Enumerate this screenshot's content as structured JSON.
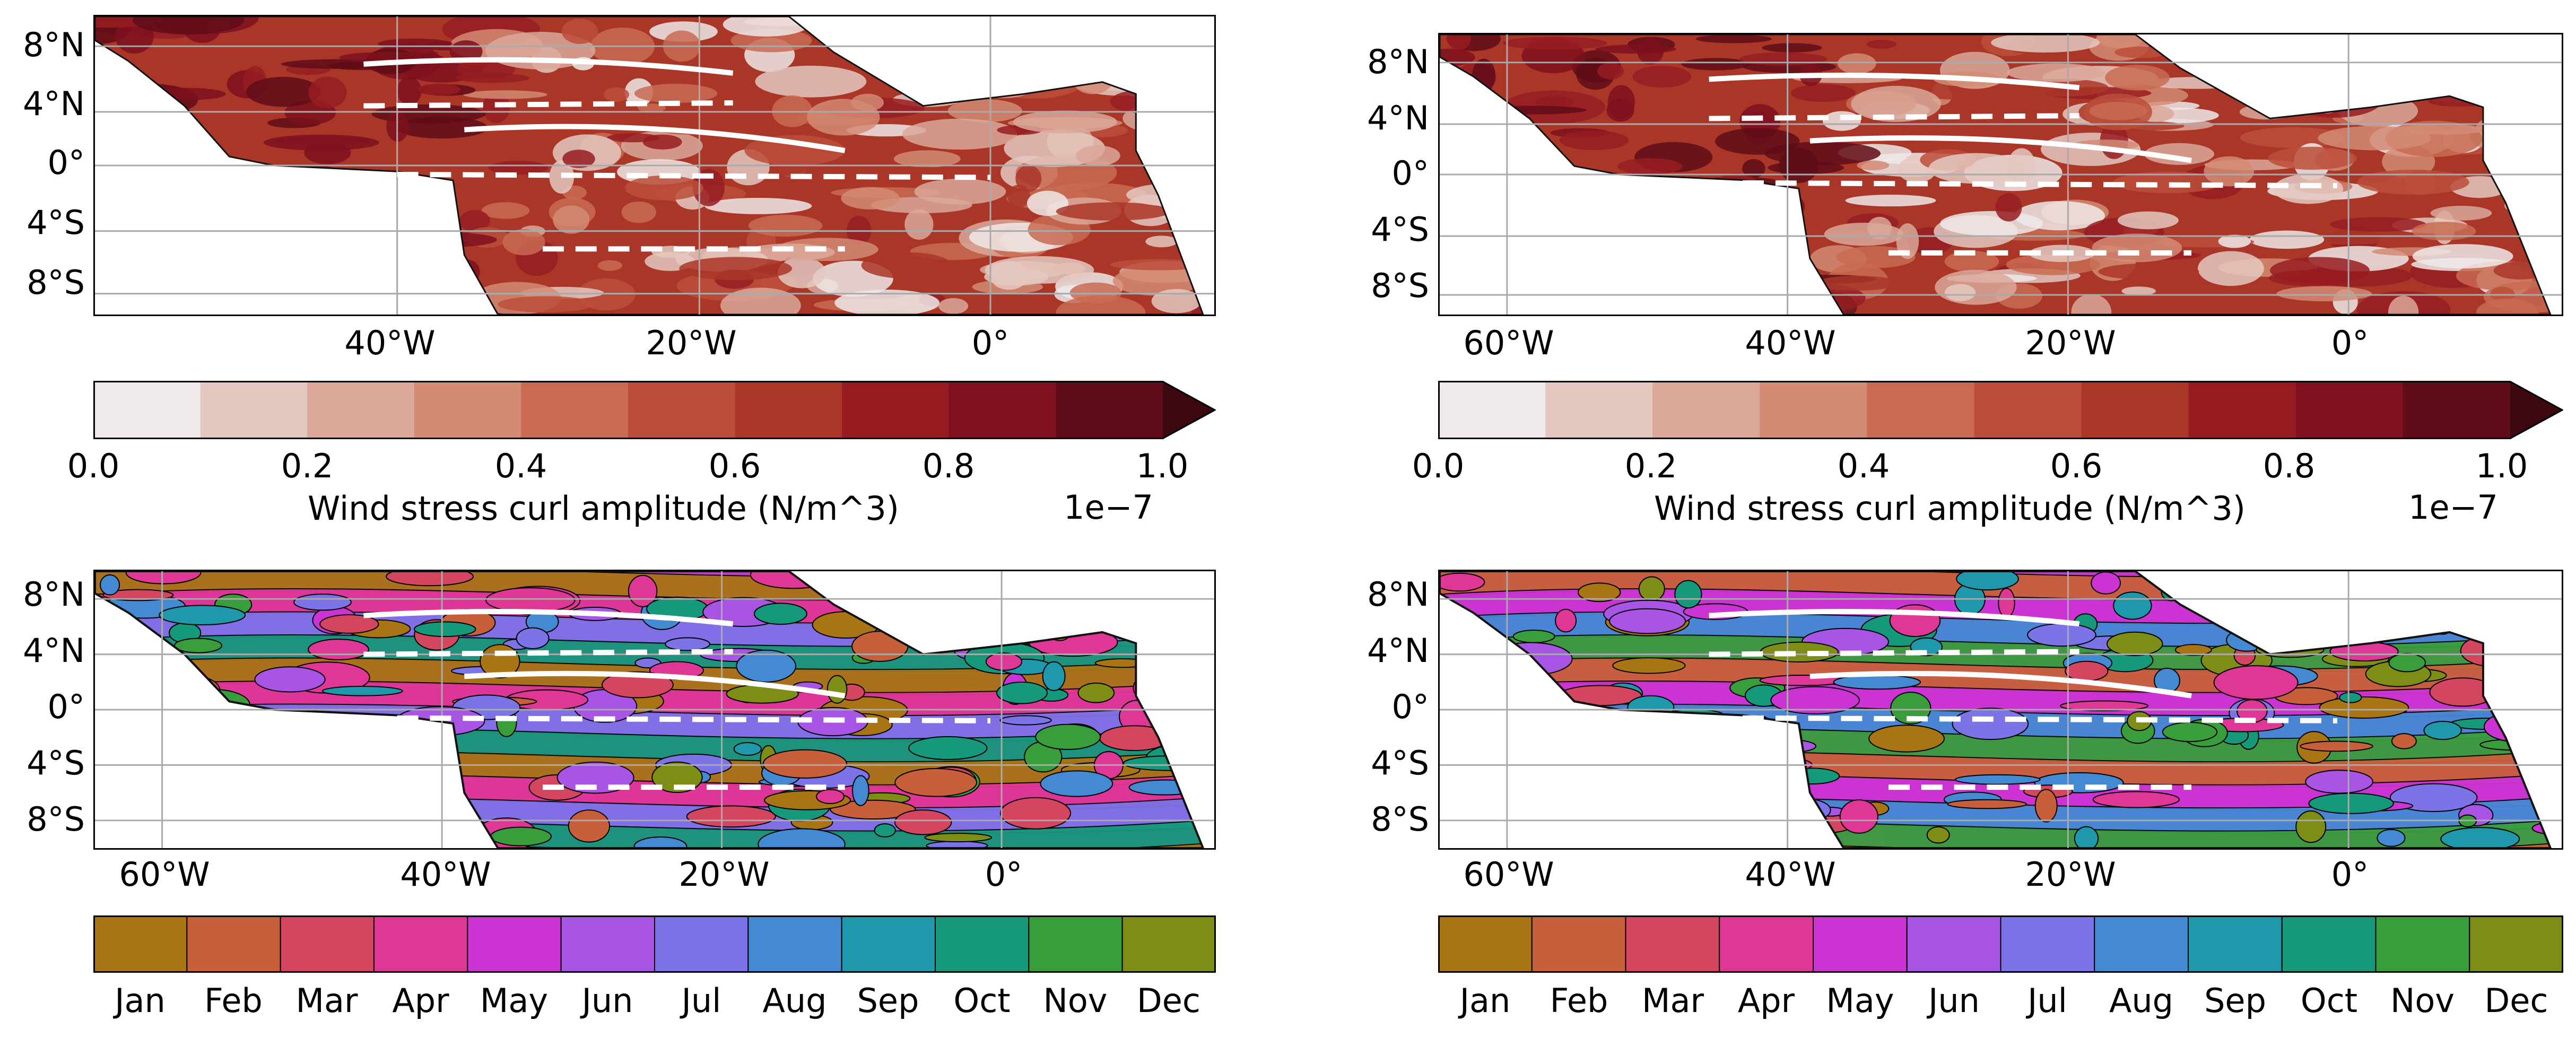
{
  "maps": {
    "lat_labels": [
      "8°N",
      "4°N",
      "0°",
      "4°S",
      "8°S"
    ],
    "lon_labels_short": [
      "40°W",
      "20°W",
      "0°"
    ],
    "lon_labels_full": [
      "60°W",
      "40°W",
      "20°W",
      "0°"
    ]
  },
  "amplitude_colorbar": {
    "ticks": [
      "0.0",
      "0.2",
      "0.4",
      "0.6",
      "0.8",
      "1.0"
    ],
    "label": "Wind stress curl amplitude (N/m^3)",
    "exponent": "1e−7",
    "colors": [
      "#efe9e9",
      "#e4c8c0",
      "#dba89a",
      "#d48b74",
      "#c86b52",
      "#bb4e3a",
      "#aa3628",
      "#961c22",
      "#7e101f",
      "#5f0d18"
    ],
    "extend_color": "#3d0710"
  },
  "phase_colorbar": {
    "months": [
      "Jan",
      "Feb",
      "Mar",
      "Apr",
      "May",
      "Jun",
      "Jul",
      "Aug",
      "Sep",
      "Oct",
      "Nov",
      "Dec"
    ],
    "colors": [
      "#a87414",
      "#c7603a",
      "#d4455f",
      "#df3795",
      "#cb34d3",
      "#a855e6",
      "#7c73e6",
      "#438ad2",
      "#1e98aa",
      "#16987a",
      "#399d3c",
      "#7d8d16"
    ]
  },
  "style": {
    "amp_low": "#f3ecea",
    "amp_mid": "#c46248",
    "amp_high": "#4e0b14",
    "coast": "#111111",
    "grid": "#aaaaaa",
    "lines": "#ffffff"
  }
}
